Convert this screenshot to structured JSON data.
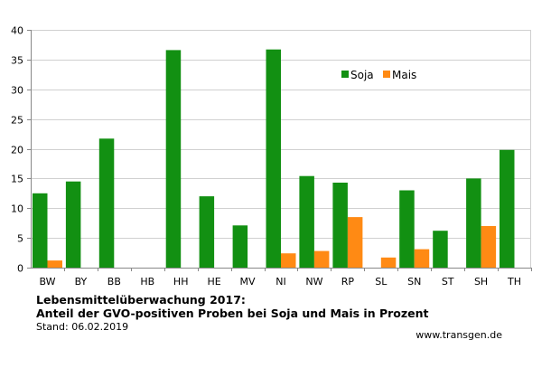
{
  "chart_data": {
    "type": "bar",
    "categories": [
      "BW",
      "BY",
      "BB",
      "HB",
      "HH",
      "HE",
      "MV",
      "NI",
      "NW",
      "RP",
      "SL",
      "SN",
      "ST",
      "SH",
      "TH"
    ],
    "series": [
      {
        "name": "Soja",
        "color": "#129012",
        "values": [
          12.5,
          14.5,
          21.7,
          0,
          36.6,
          12,
          7.1,
          36.7,
          15.4,
          14.3,
          0,
          13,
          6.2,
          15,
          19.8
        ]
      },
      {
        "name": "Mais",
        "color": "#ff8a14",
        "values": [
          1.2,
          0,
          0,
          0,
          0,
          0,
          0,
          2.4,
          2.8,
          8.5,
          1.7,
          3.1,
          0,
          7,
          0
        ]
      }
    ],
    "ylim": [
      0,
      40
    ],
    "yticks": [
      0,
      5,
      10,
      15,
      20,
      25,
      30,
      35,
      40
    ],
    "legend_position": "upper-right",
    "grid": "horizontal",
    "title": "Lebensmittelüberwachung 2017:",
    "subtitle": "Anteil der GVO-positiven Proben bei Soja und Mais in Prozent",
    "date_note": "Stand: 06.02.2019",
    "source": "www.transgen.de"
  }
}
